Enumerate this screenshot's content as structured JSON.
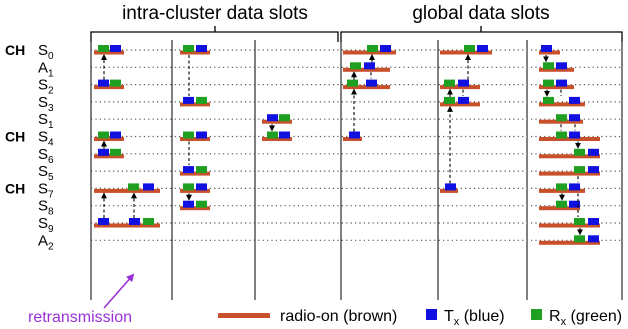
{
  "header": {
    "intra_title": "intra-cluster data slots",
    "global_title": "global data slots"
  },
  "rows": [
    {
      "ch": "CH",
      "base": "S",
      "sub": "0"
    },
    {
      "ch": "",
      "base": "A",
      "sub": "1"
    },
    {
      "ch": "",
      "base": "S",
      "sub": "2"
    },
    {
      "ch": "",
      "base": "S",
      "sub": "3"
    },
    {
      "ch": "",
      "base": "S",
      "sub": "1"
    },
    {
      "ch": "CH",
      "base": "S",
      "sub": "4"
    },
    {
      "ch": "",
      "base": "S",
      "sub": "6"
    },
    {
      "ch": "",
      "base": "S",
      "sub": "5"
    },
    {
      "ch": "CH",
      "base": "S",
      "sub": "7"
    },
    {
      "ch": "",
      "base": "S",
      "sub": "8"
    },
    {
      "ch": "",
      "base": "S",
      "sub": "9"
    },
    {
      "ch": "",
      "base": "A",
      "sub": "2"
    }
  ],
  "annotation": {
    "retransmission": "retransmission"
  },
  "legend": {
    "radio_label": "radio-on (brown)",
    "tx_base": "T",
    "tx_sub": "x",
    "tx_suffix": " (blue)",
    "rx_base": "R",
    "rx_sub": "x",
    "rx_suffix": " (green)"
  },
  "colors": {
    "radio": "#c8502a",
    "tx": "#1010e0",
    "rx": "#20a020",
    "annotation": "#9b30d9",
    "dots": "#555555",
    "link": "#000000"
  }
}
